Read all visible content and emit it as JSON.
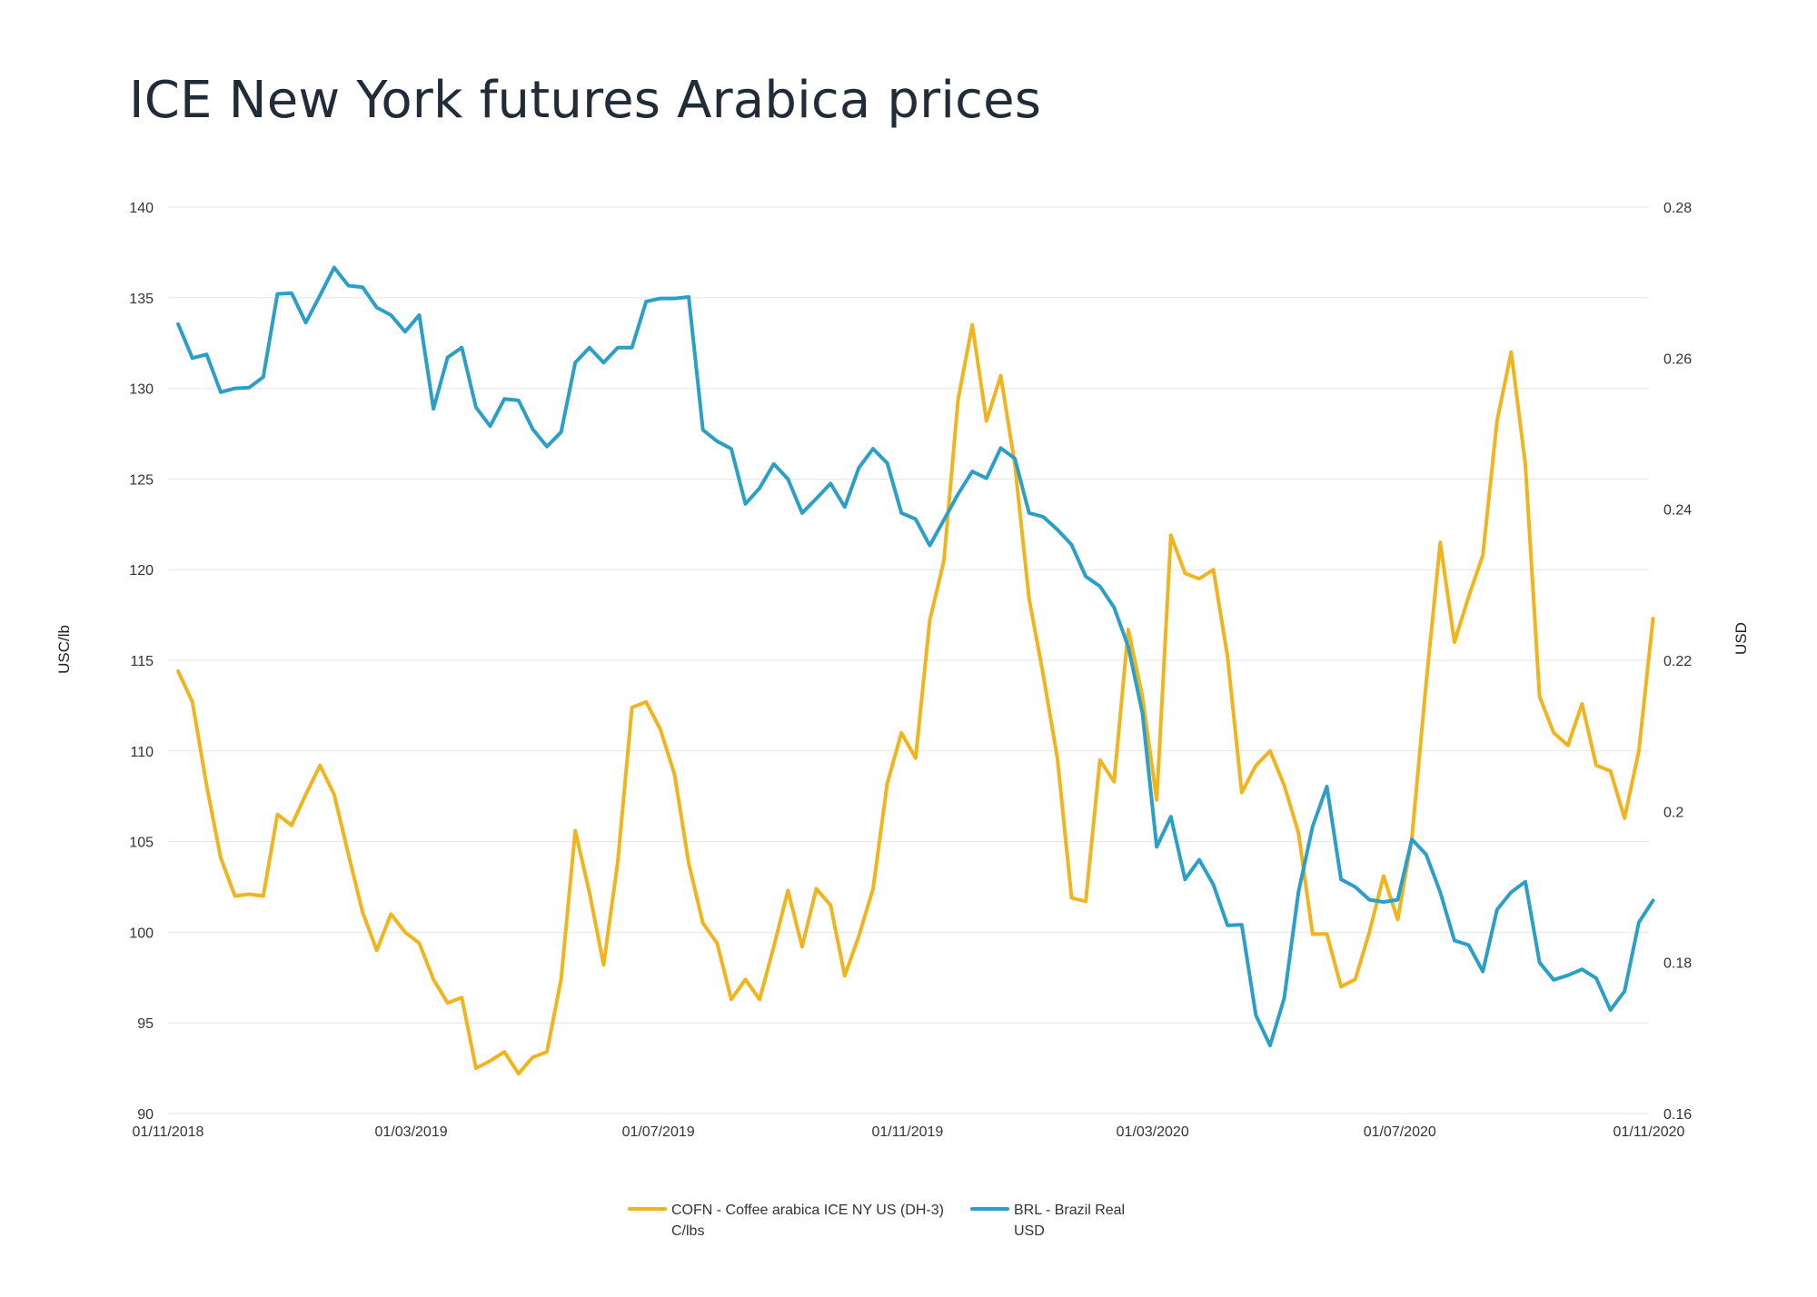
{
  "title": "ICE New York futures Arabica prices",
  "chart_data": {
    "type": "line",
    "title": "ICE New York futures Arabica prices",
    "y_left": {
      "label": "USC/lb",
      "min": 90,
      "max": 140,
      "ticks": [
        "90",
        "95",
        "100",
        "105",
        "110",
        "115",
        "120",
        "125",
        "130",
        "135",
        "140"
      ]
    },
    "y_right": {
      "label": "USD",
      "min": 0.16,
      "max": 0.28,
      "ticks": [
        "0.16",
        "0.18",
        "0.2",
        "0.22",
        "0.24",
        "0.26",
        "0.28"
      ]
    },
    "x_ticks": [
      {
        "label": "01/11/2018",
        "date": "2018-11-01"
      },
      {
        "label": "01/03/2019",
        "date": "2019-03-01"
      },
      {
        "label": "01/07/2019",
        "date": "2019-07-01"
      },
      {
        "label": "01/11/2019",
        "date": "2019-11-01"
      },
      {
        "label": "01/03/2020",
        "date": "2020-03-01"
      },
      {
        "label": "01/07/2020",
        "date": "2020-07-01"
      },
      {
        "label": "01/11/2020",
        "date": "2020-11-01"
      }
    ],
    "x_range": [
      "2018-11-01",
      "2020-11-01"
    ],
    "grid": true,
    "legend_position": "bottom",
    "x": [
      "2018-11-06",
      "2018-11-13",
      "2018-11-20",
      "2018-11-27",
      "2018-12-04",
      "2018-12-11",
      "2018-12-18",
      "2018-12-25",
      "2019-01-01",
      "2019-01-08",
      "2019-01-15",
      "2019-01-22",
      "2019-01-29",
      "2019-02-05",
      "2019-02-12",
      "2019-02-19",
      "2019-02-26",
      "2019-03-05",
      "2019-03-12",
      "2019-03-19",
      "2019-03-26",
      "2019-04-02",
      "2019-04-09",
      "2019-04-16",
      "2019-04-23",
      "2019-04-30",
      "2019-05-07",
      "2019-05-14",
      "2019-05-21",
      "2019-05-28",
      "2019-06-04",
      "2019-06-11",
      "2019-06-18",
      "2019-06-25",
      "2019-07-02",
      "2019-07-09",
      "2019-07-16",
      "2019-07-23",
      "2019-07-30",
      "2019-08-06",
      "2019-08-13",
      "2019-08-20",
      "2019-08-27",
      "2019-09-03",
      "2019-09-10",
      "2019-09-17",
      "2019-09-24",
      "2019-10-01",
      "2019-10-08",
      "2019-10-15",
      "2019-10-22",
      "2019-10-29",
      "2019-11-05",
      "2019-11-12",
      "2019-11-19",
      "2019-11-26",
      "2019-12-03",
      "2019-12-10",
      "2019-12-17",
      "2019-12-24",
      "2019-12-31",
      "2020-01-07",
      "2020-01-14",
      "2020-01-21",
      "2020-01-28",
      "2020-02-04",
      "2020-02-11",
      "2020-02-18",
      "2020-02-25",
      "2020-03-03",
      "2020-03-10",
      "2020-03-17",
      "2020-03-24",
      "2020-03-31",
      "2020-04-07",
      "2020-04-14",
      "2020-04-21",
      "2020-04-28",
      "2020-05-05",
      "2020-05-12",
      "2020-05-19",
      "2020-05-26",
      "2020-06-02",
      "2020-06-09",
      "2020-06-16",
      "2020-06-23",
      "2020-06-30",
      "2020-07-07",
      "2020-07-14",
      "2020-07-21",
      "2020-07-28",
      "2020-08-04",
      "2020-08-11",
      "2020-08-18",
      "2020-08-25",
      "2020-09-01",
      "2020-09-08",
      "2020-09-15",
      "2020-09-22",
      "2020-09-29",
      "2020-10-06",
      "2020-10-13",
      "2020-10-20",
      "2020-10-27",
      "2020-11-03"
    ],
    "series": [
      {
        "name": "COFN - Coffee arabica ICE NY US (DH-3) C/lbs",
        "axis": "left",
        "color": "#f2b41c",
        "values": [
          114.4,
          112.7,
          108.1,
          104.1,
          102.0,
          102.1,
          102.0,
          106.5,
          105.9,
          107.6,
          109.2,
          107.6,
          104.3,
          101.1,
          99.0,
          101.0,
          100.0,
          99.4,
          97.4,
          96.1,
          96.4,
          92.5,
          92.9,
          93.4,
          92.2,
          93.1,
          93.4,
          97.4,
          105.6,
          102.2,
          98.2,
          103.9,
          112.4,
          112.7,
          111.2,
          108.7,
          103.8,
          100.5,
          99.4,
          96.3,
          97.4,
          96.3,
          99.2,
          102.3,
          99.2,
          102.4,
          101.5,
          97.6,
          99.8,
          102.4,
          108.2,
          111.0,
          109.6,
          117.2,
          120.5,
          129.4,
          133.5,
          128.2,
          130.7,
          125.8,
          118.4,
          114.2,
          109.6,
          101.9,
          101.7,
          109.5,
          108.3,
          116.7,
          113.0,
          107.3,
          121.9,
          119.8,
          119.5,
          120.0,
          115.2,
          107.7,
          109.2,
          110.0,
          108.1,
          105.5,
          99.9,
          99.9,
          97.0,
          97.4,
          100.0,
          103.1,
          100.7,
          105.2,
          113.7,
          121.5,
          116.0,
          118.5,
          120.8,
          128.2,
          132.0,
          125.8,
          113.0,
          111.0,
          110.3,
          112.6,
          109.2,
          108.9,
          106.3,
          110.0,
          117.3
        ]
      },
      {
        "name": "BRL - Brazil Real USD",
        "axis": "right",
        "color": "#2aa0c8",
        "values": [
          0.2645,
          0.26,
          0.2605,
          0.2555,
          0.256,
          0.2561,
          0.2575,
          0.2685,
          0.2686,
          0.2647,
          0.2683,
          0.272,
          0.2696,
          0.2694,
          0.2667,
          0.2657,
          0.2635,
          0.2657,
          0.2533,
          0.2601,
          0.2614,
          0.2535,
          0.251,
          0.2546,
          0.2544,
          0.2506,
          0.2483,
          0.2502,
          0.2594,
          0.2614,
          0.2594,
          0.2614,
          0.2614,
          0.2675,
          0.2679,
          0.2679,
          0.2681,
          0.2505,
          0.249,
          0.248,
          0.2407,
          0.2428,
          0.246,
          0.244,
          0.2395,
          0.2414,
          0.2434,
          0.2403,
          0.2455,
          0.248,
          0.2461,
          0.2395,
          0.2387,
          0.2352,
          0.2386,
          0.242,
          0.245,
          0.2441,
          0.2481,
          0.2467,
          0.2395,
          0.239,
          0.2373,
          0.2353,
          0.2311,
          0.2298,
          0.227,
          0.2218,
          0.213,
          0.1953,
          0.1993,
          0.191,
          0.1936,
          0.1903,
          0.1849,
          0.185,
          0.173,
          0.169,
          0.1753,
          0.1893,
          0.198,
          0.2033,
          0.191,
          0.19,
          0.1883,
          0.188,
          0.1883,
          0.1963,
          0.1943,
          0.1893,
          0.1829,
          0.1823,
          0.1788,
          0.187,
          0.1893,
          0.1907,
          0.18,
          0.1777,
          0.1783,
          0.1791,
          0.1779,
          0.1737,
          0.1762,
          0.1853,
          0.1882
        ]
      }
    ],
    "legend": [
      {
        "line1": "COFN - Coffee arabica ICE NY US (DH-3)",
        "line2": "C/lbs",
        "color": "#f2b41c"
      },
      {
        "line1": "BRL - Brazil Real",
        "line2": "USD",
        "color": "#2aa0c8"
      }
    ]
  }
}
